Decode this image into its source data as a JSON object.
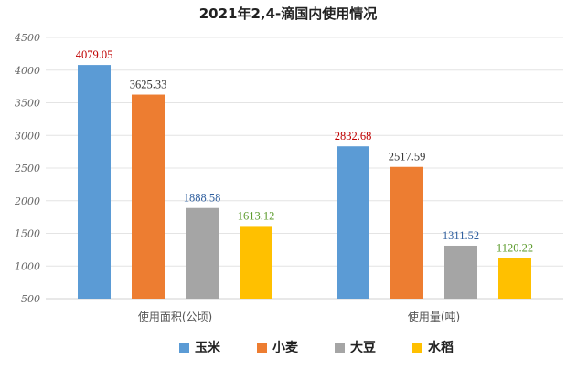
{
  "chart_data": {
    "type": "bar",
    "title": "2021年2,4-滴国内使用情况",
    "categories": [
      "使用面积(公顷)",
      "使用量(吨)"
    ],
    "series": [
      {
        "name": "玉米",
        "values": [
          4079.05,
          2832.68
        ],
        "color": "#5B9BD5",
        "label_color": "#C00000"
      },
      {
        "name": "小麦",
        "values": [
          3625.33,
          2517.59
        ],
        "color": "#ED7D31",
        "label_color": "#333333"
      },
      {
        "name": "大豆",
        "values": [
          1888.58,
          1311.52
        ],
        "color": "#A5A5A5",
        "label_color": "#2E5E9E"
      },
      {
        "name": "水稻",
        "values": [
          1613.12,
          1120.22
        ],
        "color": "#FFC000",
        "label_color": "#5A9A2A"
      }
    ],
    "data_labels": [
      [
        "4079.05",
        "2832.68"
      ],
      [
        "3625.33",
        "2517.59"
      ],
      [
        "1888.58",
        "1311.52"
      ],
      [
        "1613.12",
        "1120.22"
      ]
    ],
    "ylim": [
      500,
      4500
    ],
    "yticks": [
      "500",
      "1000",
      "1500",
      "2000",
      "2500",
      "3000",
      "3500",
      "4000",
      "4500"
    ],
    "grid": true,
    "legend": "bottom",
    "xlabel": "",
    "ylabel": ""
  }
}
